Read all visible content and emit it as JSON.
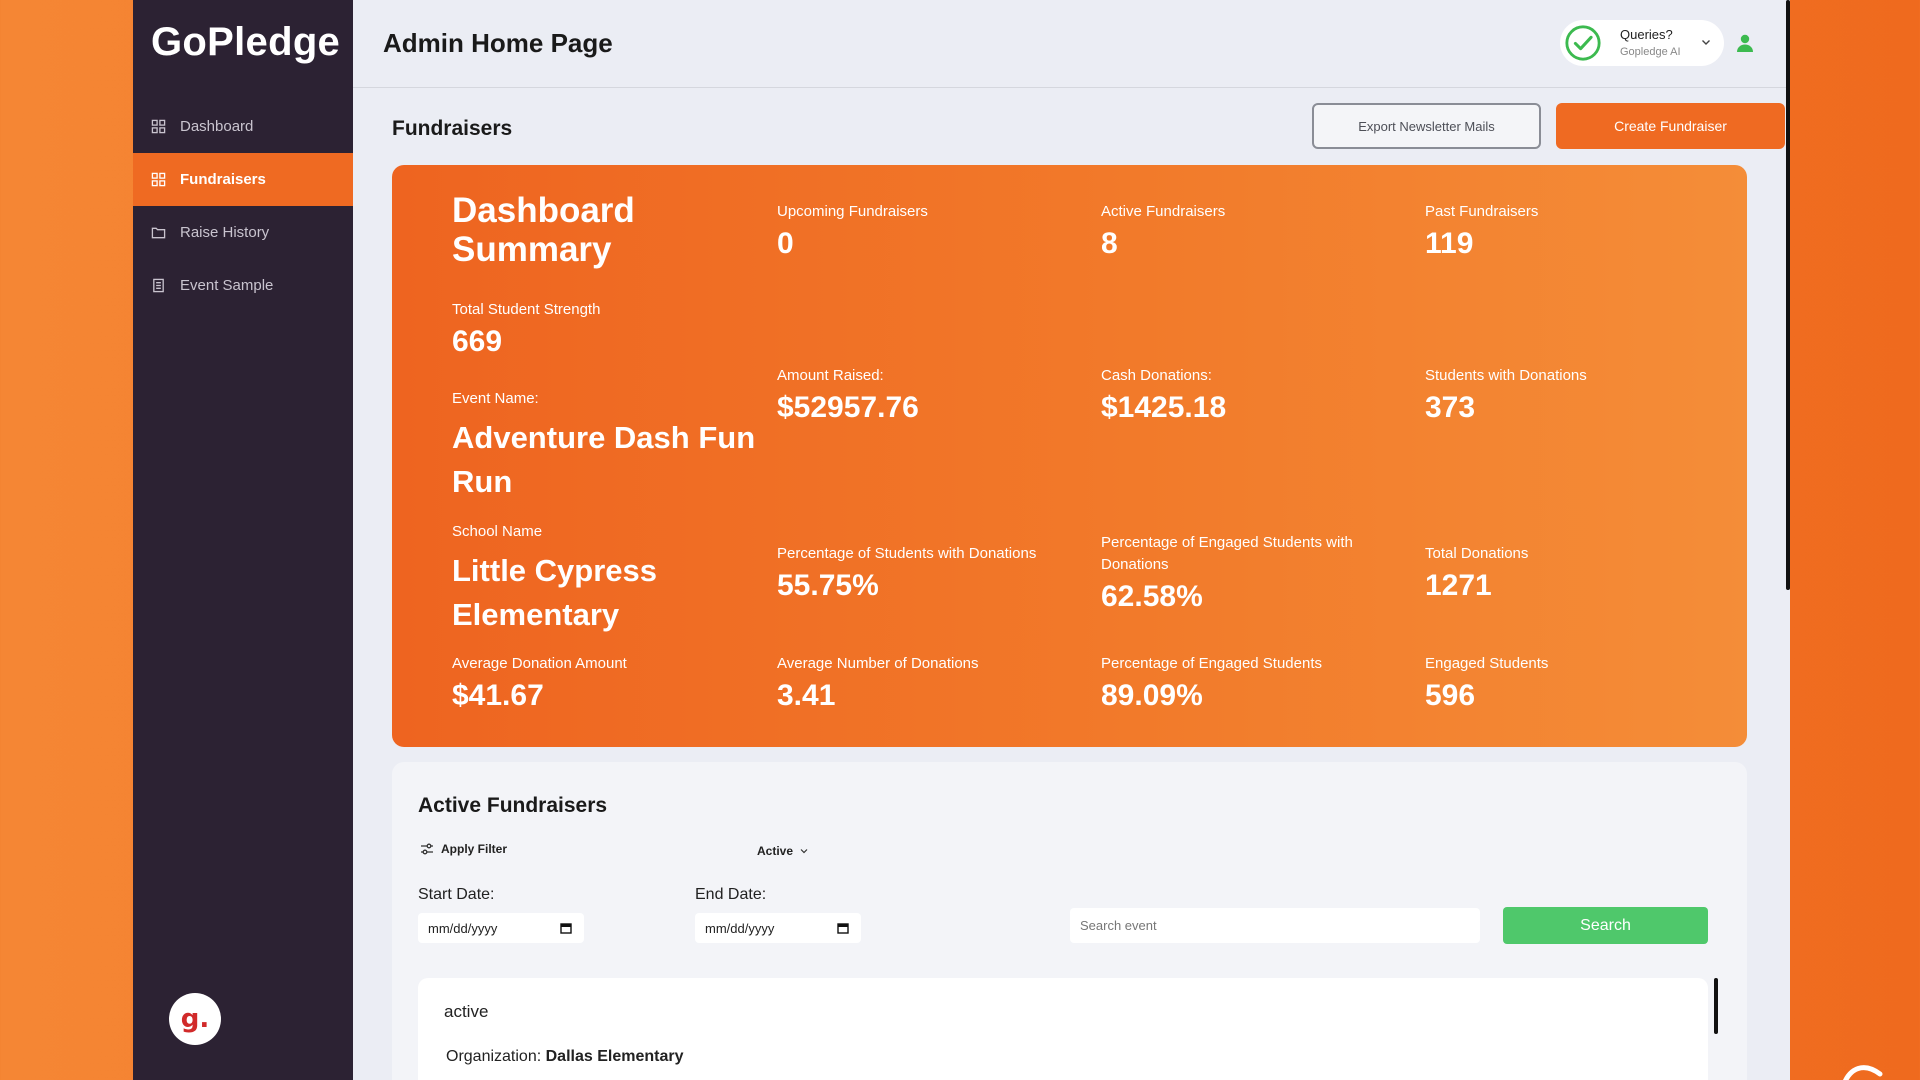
{
  "brand": "GoPledge",
  "sidebar": {
    "items": [
      {
        "label": "Dashboard",
        "icon": "grid-icon"
      },
      {
        "label": "Fundraisers",
        "icon": "grid-icon"
      },
      {
        "label": "Raise History",
        "icon": "folder-icon"
      },
      {
        "label": "Event Sample",
        "icon": "document-icon"
      }
    ],
    "badge": "g."
  },
  "header": {
    "title": "Admin Home Page",
    "queries_title": "Queries?",
    "queries_sub": "Gopledge AI"
  },
  "fundraisers": {
    "title": "Fundraisers",
    "export_label": "Export Newsletter Mails",
    "create_label": "Create Fundraiser"
  },
  "summary": {
    "title_line1": "Dashboard",
    "title_line2": "Summary",
    "upcoming_label": "Upcoming Fundraisers",
    "upcoming_value": "0",
    "active_label": "Active Fundraisers",
    "active_value": "8",
    "past_label": "Past Fundraisers",
    "past_value": "119",
    "strength_label": "Total Student Strength",
    "strength_value": "669",
    "event_label": "Event Name:",
    "event_line1": "Adventure Dash Fun",
    "event_line2": "Run",
    "amount_label": "Amount Raised:",
    "amount_value": "$52957.76",
    "cash_label": "Cash Donations:",
    "cash_value": "$1425.18",
    "students_don_label": "Students with Donations",
    "students_don_value": "373",
    "school_label": "School Name",
    "school_line1": "Little Cypress",
    "school_line2": "Elementary",
    "pct_students_label": "Percentage of Students with Donations",
    "pct_students_value": "55.75%",
    "pct_engaged_don_label_1": "Percentage of Engaged Students with",
    "pct_engaged_don_label_2": "Donations",
    "pct_engaged_don_value": "62.58%",
    "total_don_label": "Total Donations",
    "total_don_value": "1271",
    "avg_amount_label": "Average Donation Amount",
    "avg_amount_value": "$41.67",
    "avg_num_label": "Average Number of Donations",
    "avg_num_value": "3.41",
    "pct_engaged_label": "Percentage of Engaged Students",
    "pct_engaged_value": "89.09%",
    "engaged_label": "Engaged Students",
    "engaged_value": "596"
  },
  "active": {
    "title": "Active Fundraisers",
    "apply_filter": "Apply Filter",
    "status_value": "Active",
    "start_label": "Start Date:",
    "end_label": "End Date:",
    "date_placeholder": "mm/dd/yyyy",
    "search_placeholder": "Search event",
    "search_button": "Search",
    "result_status": "active",
    "org_label": "Organization:",
    "org_value": "Dallas Elementary"
  },
  "colors": {
    "accent": "#ef6a22",
    "sidebar": "#2c2233",
    "search_green": "#4fc86b"
  }
}
